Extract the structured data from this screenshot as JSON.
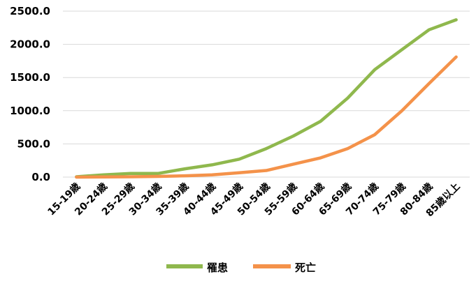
{
  "chart_data": {
    "type": "line",
    "categories": [
      "15-19歳",
      "20-24歳",
      "25-29歳",
      "30-34歳",
      "35-39歳",
      "40-44歳",
      "45-49歳",
      "50-54歳",
      "55-59歳",
      "60-64歳",
      "65-69歳",
      "70-74歳",
      "75-79歳",
      "80-84歳",
      "85歳以上"
    ],
    "series": [
      {
        "name": "罹患",
        "color": "#8fb84d",
        "values": [
          5,
          35,
          55,
          55,
          125,
          185,
          270,
          430,
          620,
          840,
          1190,
          1620,
          1920,
          2220,
          2370
        ]
      },
      {
        "name": "死亡",
        "color": "#f4924a",
        "values": [
          0,
          2,
          5,
          10,
          20,
          35,
          65,
          100,
          195,
          290,
          430,
          640,
          1000,
          1410,
          1810
        ]
      }
    ],
    "y_ticks": [
      "0.0",
      "500.0",
      "1000.0",
      "1500.0",
      "2000.0",
      "2500.0"
    ],
    "ylim": [
      0,
      2500
    ],
    "grid": true,
    "legend_position": "bottom"
  }
}
